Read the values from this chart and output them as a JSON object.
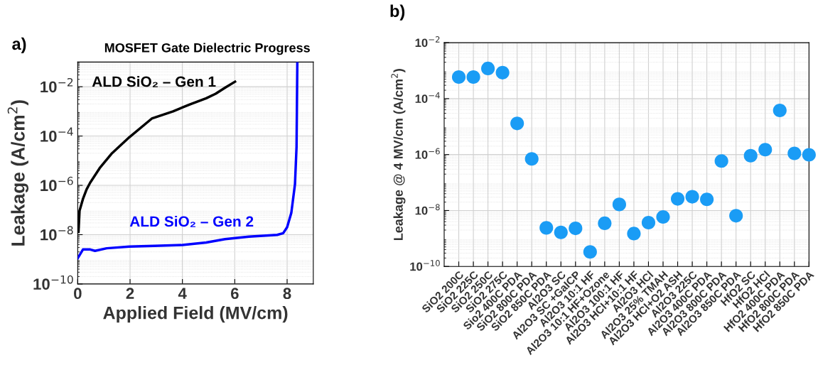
{
  "chart_data": [
    {
      "type": "line",
      "title": "MOSFET Gate Dielectric Progress",
      "xlabel": "Applied Field (MV/cm)",
      "ylabel": "Leakage (A/cm$^{2}$)",
      "annotations": [
        "a)"
      ],
      "log": "y",
      "grid": true,
      "marker": "none",
      "line_style": "solid",
      "xlim": [
        0,
        9
      ],
      "xticks": [
        0,
        2,
        4,
        6,
        8
      ],
      "ylim": [
        1e-10,
        0.1
      ],
      "yticks": [
        {
          "value": 1e-10,
          "label": "10$^{−10}$"
        },
        {
          "value": 1e-08,
          "label": "10$^{−8}$"
        },
        {
          "value": 1e-06,
          "label": "10$^{−6}$"
        },
        {
          "value": 0.0001,
          "label": "10$^{−4}$"
        },
        {
          "value": 0.01,
          "label": "10$^{−2}$"
        }
      ],
      "series": [
        {
          "name": "ALD SiO₂ – Gen 1",
          "color": "#000000",
          "x": [
            0.03,
            0.07,
            0.2,
            0.34,
            0.48,
            0.84,
            1.29,
            1.97,
            2.83,
            3.64,
            4.28,
            4.91,
            5.27,
            5.63,
            6.01
          ],
          "values": [
            1.3e-08,
            9.3e-08,
            2.8e-07,
            6.9e-07,
            1.3e-06,
            5e-06,
            1.9e-05,
            8.9e-05,
            0.00051,
            0.001,
            0.0019,
            0.0034,
            0.0052,
            0.0091,
            0.016
          ]
        },
        {
          "name": "ALD SiO₂ – Gen 2",
          "color": "#0000ff",
          "x": [
            0,
            0.2,
            0.48,
            0.66,
            1.11,
            1.97,
            2.92,
            4.0,
            4.91,
            5.63,
            6.54,
            7.62,
            7.85,
            8.0,
            8.16,
            8.3,
            8.36,
            8.39
          ],
          "values": [
            1.1e-09,
            2.5e-09,
            2.5e-09,
            2.2e-09,
            2.8e-09,
            3.3e-09,
            3.5e-09,
            3.8e-09,
            4.8e-09,
            6.6e-09,
            8.3e-09,
            9.8e-09,
            1.15e-08,
            2e-08,
            7.6e-08,
            1.1e-06,
            3.6e-05,
            0.1
          ]
        }
      ]
    },
    {
      "type": "scatter",
      "ylabel": "Leakage @ 4 MV/cm (A/cm$^{2}$)",
      "annotations": [
        "b)"
      ],
      "log": "y",
      "grid": true,
      "marker": "circle",
      "categories": [
        "SiO2 200C",
        "SiO2 225C",
        "SiO2 250C",
        "SiO2 275C",
        "Sio2 400C PDA",
        "SiO2 800C PDA",
        "SiO2 850C PDA",
        "Al2O3 SC",
        "Al2O3 SC +GaICP",
        "Al2O3 10:1 HF",
        "Al2O3 10:1 HF+Ozone",
        "Al2O3 100:1 HF",
        "Al2O3 HCl+10:1 HF",
        "Al2O3 HCl",
        "Al2O3 25% TMAH",
        "Al2O3 HCl+O2 ASH",
        "Al2O3 225C",
        "Al2O3 400C PDA",
        "Al2O3 800C PDA",
        "Al2O3 850C PDA",
        "HfO2 SC",
        "HfO2 HCl",
        "HfO2 400C PDA",
        "HfO2 800C PDA",
        "HfO2 850C PDA"
      ],
      "ylim": [
        1e-10,
        0.01
      ],
      "yticks": [
        {
          "value": 1e-10,
          "label": "10$^{−10}$"
        },
        {
          "value": 1e-08,
          "label": "10$^{−8}$"
        },
        {
          "value": 1e-06,
          "label": "10$^{−6}$"
        },
        {
          "value": 0.0001,
          "label": "10$^{−4}$"
        },
        {
          "value": 0.01,
          "label": "10$^{−2}$"
        }
      ],
      "series": [
        {
          "color": "#1a9cf5",
          "values": [
            0.00059,
            0.00059,
            0.0012,
            0.00085,
            1.3e-05,
            7e-07,
            2.4e-09,
            1.65e-09,
            2.3e-09,
            3.3e-10,
            3.5e-09,
            1.65e-08,
            1.5e-09,
            3.7e-09,
            5.9e-09,
            2.6e-08,
            3.1e-08,
            2.5e-08,
            5.9e-07,
            6.5e-09,
            9.1e-07,
            1.5e-06,
            3.8e-05,
            1.1e-06,
            9.8e-07
          ]
        }
      ]
    }
  ]
}
